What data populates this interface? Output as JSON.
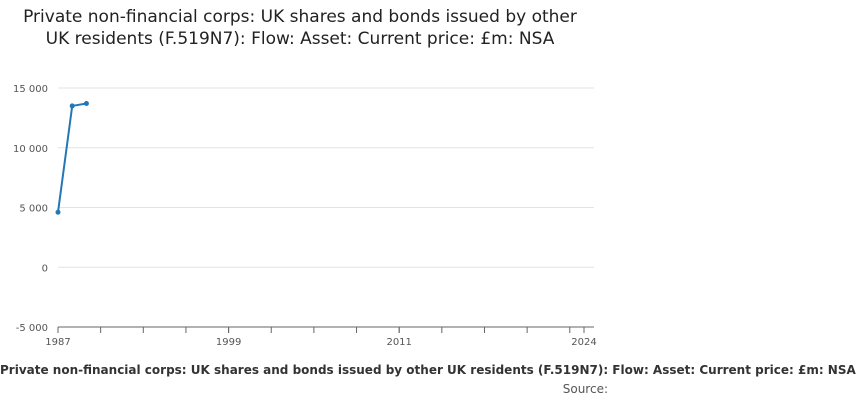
{
  "chart_data": {
    "type": "line",
    "title": "Private non-financial corps: UK shares and bonds issued by other UK residents (F.519N7): Flow: Asset: Current price: £m: NSA",
    "xlabel": "Private non-financial corps: UK shares and bonds issued by other UK residents (F.519N7): Flow: Asset: Current price: £m: NSA",
    "ylabel": "",
    "x": [
      1987,
      1988,
      1989
    ],
    "series": [
      {
        "values": [
          4600,
          13500,
          13700
        ]
      }
    ],
    "xlim": [
      1987,
      2024
    ],
    "ylim": [
      -5000,
      15000
    ],
    "x_ticks": [
      1987,
      1999,
      2011,
      2024
    ],
    "x_tick_labels": [
      "1987",
      "1999",
      "2011",
      "2024"
    ],
    "y_ticks": [
      -5000,
      0,
      5000,
      10000,
      15000
    ],
    "y_tick_labels": [
      "-5 000",
      "0",
      "5 000",
      "10 000",
      "15 000"
    ],
    "grid": true,
    "source_label": "Source:",
    "colors": {
      "line": "#2377b6",
      "grid": "#e3e3e3",
      "axis": "#666666"
    }
  }
}
